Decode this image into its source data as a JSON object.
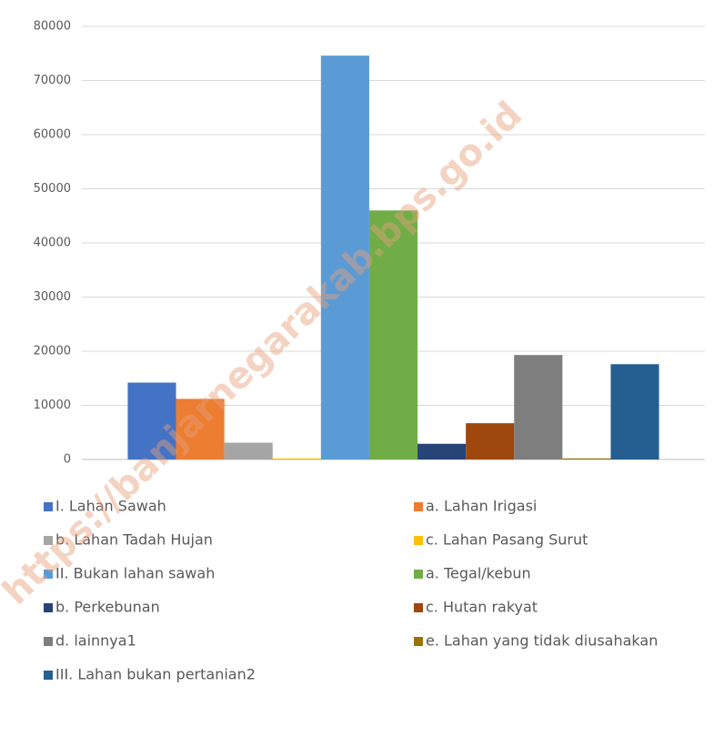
{
  "chart_data": {
    "type": "bar",
    "categories": [
      null
    ],
    "series": [
      {
        "name": "I. Lahan Sawah",
        "color": "#4472c4",
        "values": [
          14200
        ]
      },
      {
        "name": "a. Lahan Irigasi",
        "color": "#ed7d31",
        "values": [
          11200
        ]
      },
      {
        "name": "b. Lahan Tadah Hujan",
        "color": "#a5a5a5",
        "values": [
          3100
        ]
      },
      {
        "name": "c. Lahan Pasang Surut",
        "color": "#ffc000",
        "values": [
          200
        ]
      },
      {
        "name": "II. Bukan lahan sawah",
        "color": "#5b9bd5",
        "values": [
          74600
        ]
      },
      {
        "name": "a. Tegal/kebun",
        "color": "#70ad47",
        "values": [
          46000
        ]
      },
      {
        "name": "b. Perkebunan",
        "color": "#264478",
        "values": [
          2900
        ]
      },
      {
        "name": "c. Hutan rakyat",
        "color": "#9e480e",
        "values": [
          6700
        ]
      },
      {
        "name": "d. lainnya1",
        "color": "#7e7e7e",
        "values": [
          19300
        ]
      },
      {
        "name": "e. Lahan yang tidak diusahakan",
        "color": "#997300",
        "values": [
          200
        ]
      },
      {
        "name": "III. Lahan bukan pertanian2",
        "color": "#255e91",
        "values": [
          17600
        ]
      }
    ],
    "ylim": [
      0,
      80000
    ],
    "yticks": [
      0,
      10000,
      20000,
      30000,
      40000,
      50000,
      60000,
      70000,
      80000
    ],
    "grid": true,
    "legend": "bottom",
    "watermark": "https://banjarnegarakab.bps.go.id"
  }
}
